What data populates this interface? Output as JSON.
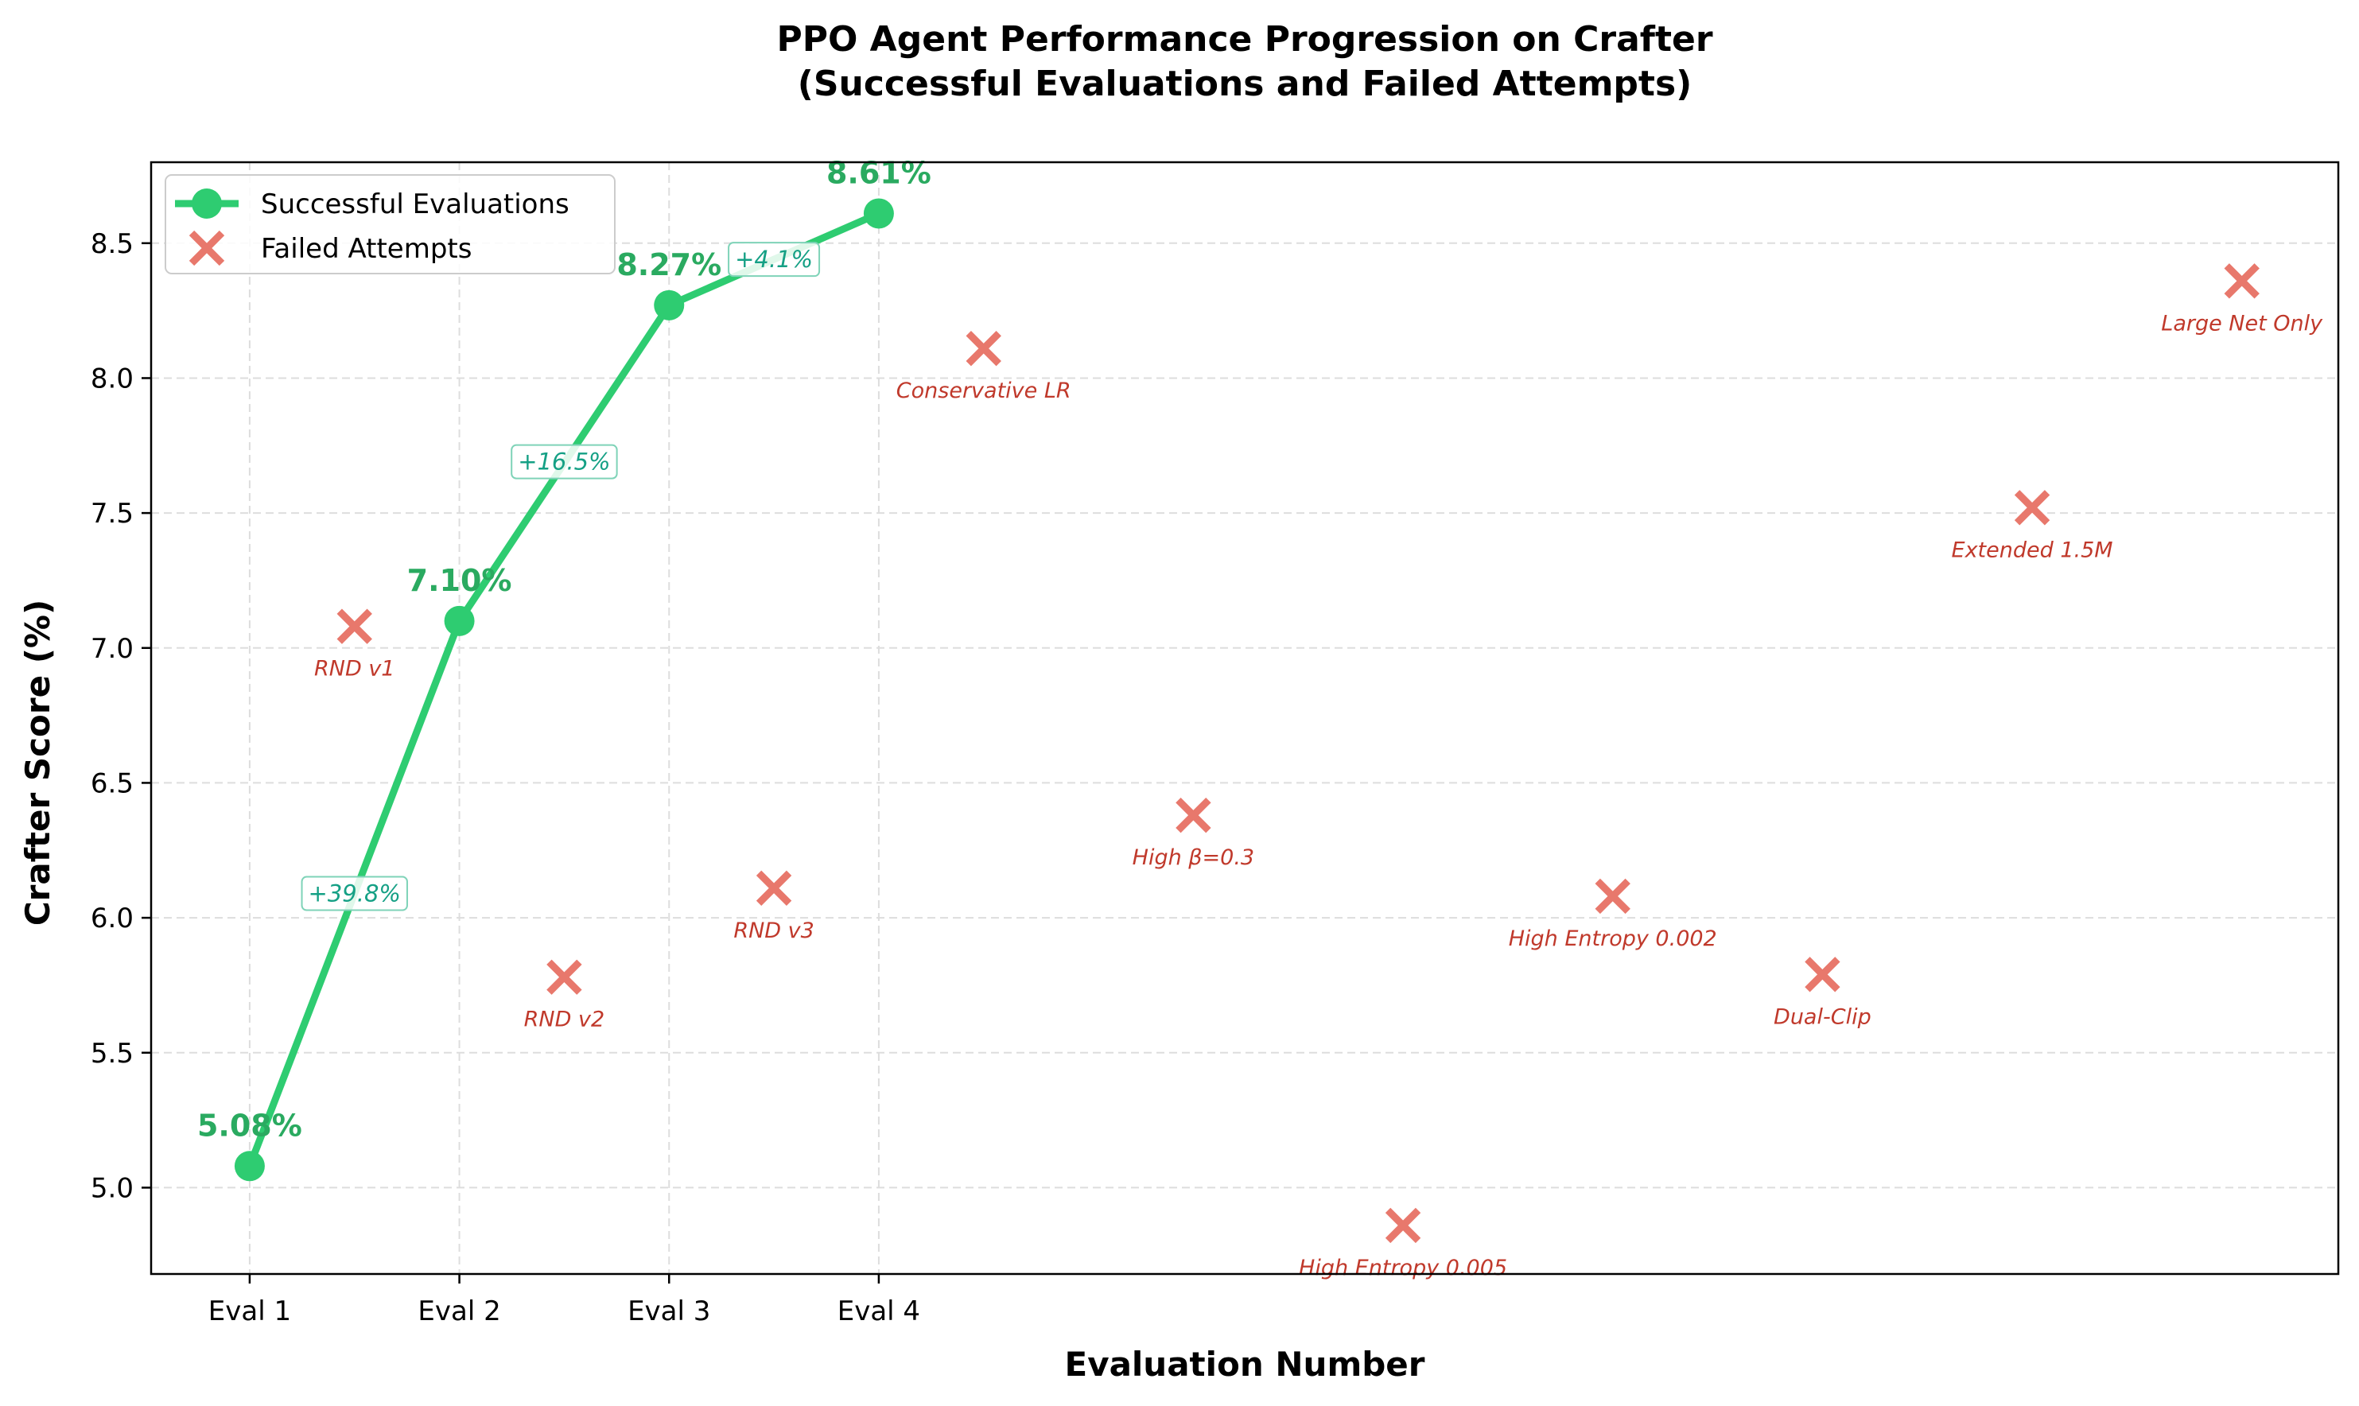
{
  "chart_data": {
    "type": "scatter",
    "title": "PPO Agent Performance Progression on Crafter",
    "subtitle": "(Successful Evaluations and Failed Attempts)",
    "xlabel": "Evaluation Number",
    "ylabel": "Crafter Score (%)",
    "x_ticks": [
      {
        "x": 0,
        "label": "Eval 1"
      },
      {
        "x": 1,
        "label": "Eval 2"
      },
      {
        "x": 2,
        "label": "Eval 3"
      },
      {
        "x": 3,
        "label": "Eval 4"
      }
    ],
    "y_ticks": [
      5.0,
      5.5,
      6.0,
      6.5,
      7.0,
      7.5,
      8.0,
      8.5
    ],
    "y_tick_labels": [
      "5.0",
      "5.5",
      "6.0",
      "6.5",
      "7.0",
      "7.5",
      "8.0",
      "8.5"
    ],
    "xlim": [
      -0.47,
      9.96
    ],
    "ylim": [
      4.68,
      8.8
    ],
    "grid": true,
    "legend_position": "upper-left",
    "colors": {
      "success": "#2ecc71",
      "success_label": "#2aaa60",
      "failed": "#e8786c",
      "failed_label": "#c0392b",
      "gain": "#15a085"
    },
    "series": [
      {
        "name": "Successful Evaluations",
        "style": "line-marker",
        "points": [
          {
            "x": 0,
            "y": 5.08,
            "label": "5.08%"
          },
          {
            "x": 1,
            "y": 7.1,
            "label": "7.10%"
          },
          {
            "x": 2,
            "y": 8.27,
            "label": "8.27%"
          },
          {
            "x": 3,
            "y": 8.61,
            "label": "8.61%"
          }
        ],
        "gains": [
          {
            "x": 0.5,
            "y": 6.09,
            "label": "+39.8%"
          },
          {
            "x": 1.5,
            "y": 7.69,
            "label": "+16.5%"
          },
          {
            "x": 2.5,
            "y": 8.44,
            "label": "+4.1%"
          }
        ]
      },
      {
        "name": "Failed Attempts",
        "style": "x-marker",
        "points": [
          {
            "x": 0.5,
            "y": 7.08,
            "label": "RND v1"
          },
          {
            "x": 1.5,
            "y": 5.78,
            "label": "RND v2"
          },
          {
            "x": 2.5,
            "y": 6.11,
            "label": "RND v3"
          },
          {
            "x": 3.5,
            "y": 8.11,
            "label": "Conservative LR"
          },
          {
            "x": 4.5,
            "y": 6.38,
            "label": "High β=0.3"
          },
          {
            "x": 5.5,
            "y": 4.86,
            "label": "High Entropy 0.005"
          },
          {
            "x": 6.5,
            "y": 6.08,
            "label": "High Entropy 0.002"
          },
          {
            "x": 7.5,
            "y": 5.79,
            "label": "Dual-Clip"
          },
          {
            "x": 8.5,
            "y": 7.52,
            "label": "Extended 1.5M"
          },
          {
            "x": 9.5,
            "y": 8.36,
            "label": "Large Net Only"
          }
        ]
      }
    ]
  }
}
